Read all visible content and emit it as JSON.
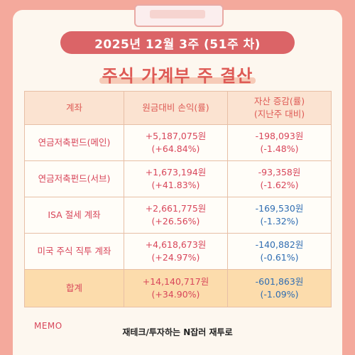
{
  "header": {
    "week_label": "2025년   12월   3주 (51주 차)",
    "title": "주식 가계부 주 결산"
  },
  "table": {
    "col_account": "계좌",
    "col_pnl": "원금대비 손익(률)",
    "col_change_line1": "자산 증감(률)",
    "col_change_line2": "(지난주 대비)",
    "rows": [
      {
        "account": "연금저축펀드(메인)",
        "pnl": "+5,187,075원",
        "pnl_rate": "(+64.84%)",
        "change": "-198,093원",
        "change_rate": "(-1.48%)"
      },
      {
        "account": "연금저축펀드(서브)",
        "pnl": "+1,673,194원",
        "pnl_rate": "(+41.83%)",
        "change": "-93,358원",
        "change_rate": "(-1.62%)"
      },
      {
        "account": "ISA 절세 계좌",
        "pnl": "+2,661,775원",
        "pnl_rate": "(+26.56%)",
        "change": "-169,530원",
        "change_rate": "(-1.32%)"
      },
      {
        "account": "미국 주식 직투 계좌",
        "pnl": "+4,618,673원",
        "pnl_rate": "(+24.97%)",
        "change": "-140,882원",
        "change_rate": "(-0.61%)"
      }
    ],
    "total": {
      "account": "합계",
      "pnl": "+14,140,717원",
      "pnl_rate": "(+34.90%)",
      "change": "-601,863원",
      "change_rate": "(-1.09%)"
    }
  },
  "footer": {
    "memo_label": "MEMO",
    "credit": "재테크/투자하는 N잡러 재투로"
  },
  "colors": {
    "background": "#f4a99c",
    "accent": "#db6467",
    "gain": "#d8465a",
    "loss": "#2f6db2",
    "total_row": "#fcdcac"
  }
}
